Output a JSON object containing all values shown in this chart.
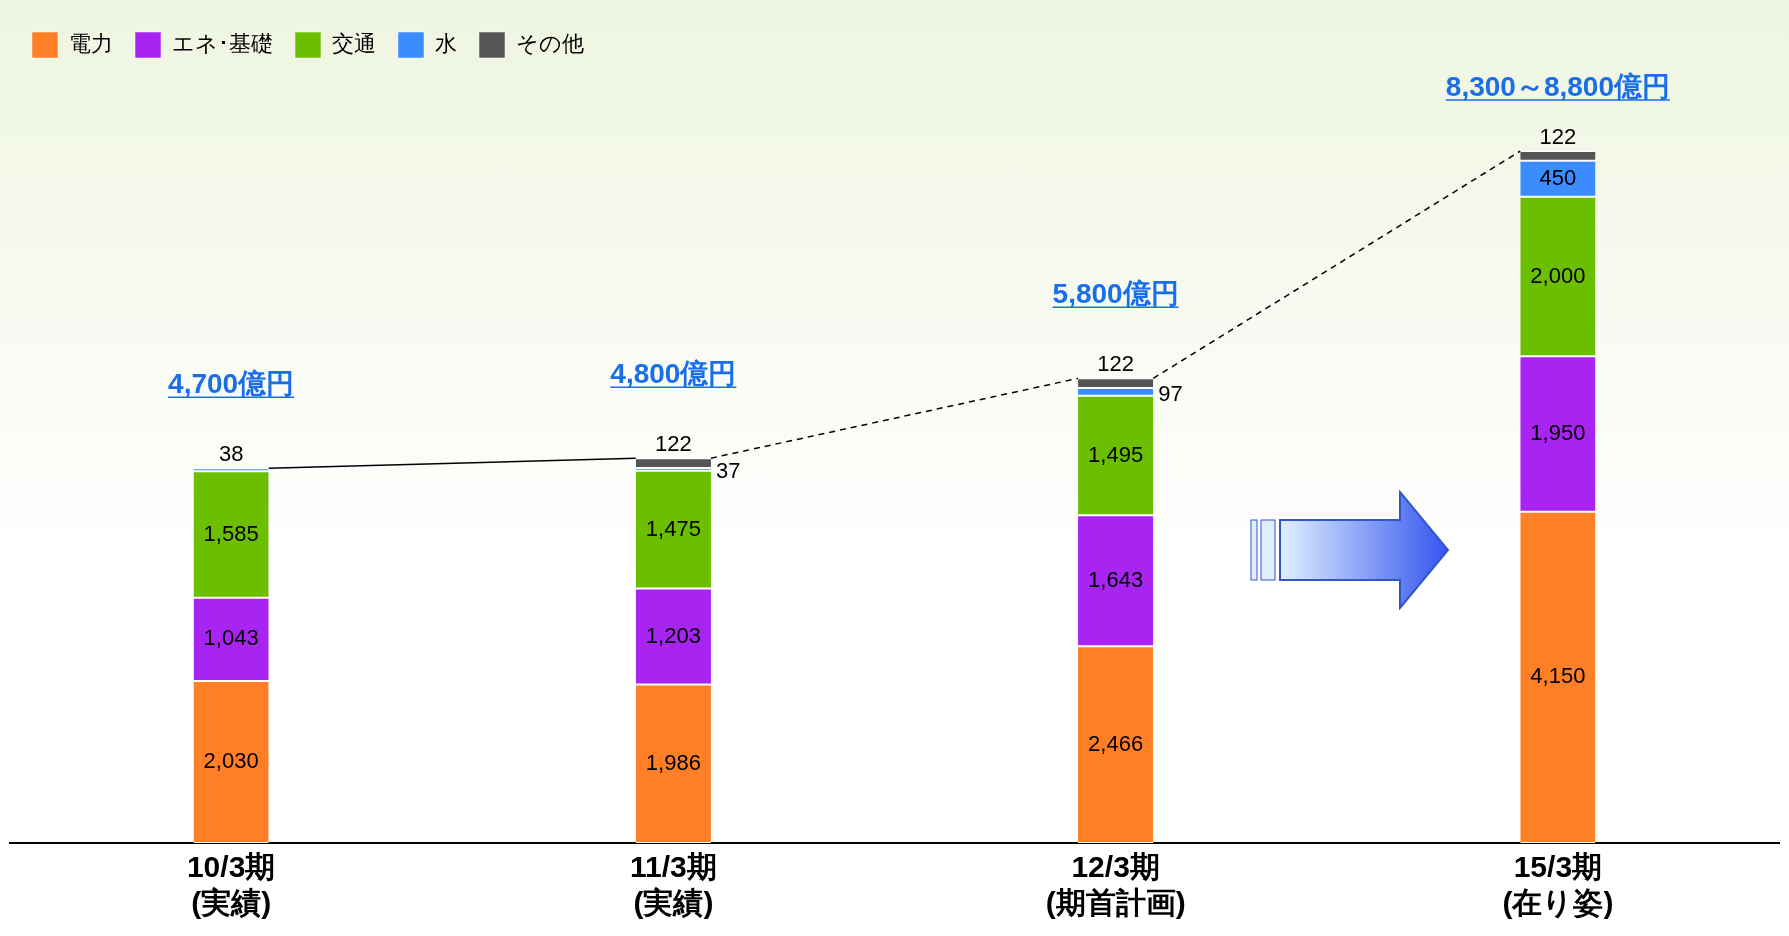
{
  "chart_data": {
    "type": "bar",
    "stacked": true,
    "categories": [
      "10/3期\n(実績)",
      "11/3期\n(実績)",
      "12/3期\n(期首計画)",
      "15/3期\n(在り姿)"
    ],
    "series": [
      {
        "name": "電力",
        "color": "#ff7f27",
        "values": [
          2030,
          1986,
          2466,
          4150
        ],
        "value_labels": [
          "2,030",
          "1,986",
          "2,466",
          "4,150"
        ]
      },
      {
        "name": "エネ･基礎",
        "color": "#a824f0",
        "values": [
          1043,
          1203,
          1643,
          1950
        ],
        "value_labels": [
          "1,043",
          "1,203",
          "1,643",
          "1,950"
        ]
      },
      {
        "name": "交通",
        "color": "#6cbf00",
        "values": [
          1585,
          1475,
          1495,
          2000
        ],
        "value_labels": [
          "1,585",
          "1,475",
          "1,495",
          "2,000"
        ]
      },
      {
        "name": "水",
        "color": "#3a8cff",
        "values": [
          38,
          37,
          97,
          450
        ],
        "value_labels": [
          "38",
          "37",
          "97",
          "450"
        ]
      },
      {
        "name": "その他",
        "color": "#555555",
        "values": [
          null,
          122,
          122,
          122
        ],
        "value_labels": [
          null,
          "122",
          "122",
          "122"
        ]
      }
    ],
    "annotations": [
      "4,700億円",
      "4,800億円",
      "5,800億円",
      "8,300～8,800億円"
    ],
    "legend": "top left",
    "grid": false,
    "tick_labels": "x"
  }
}
